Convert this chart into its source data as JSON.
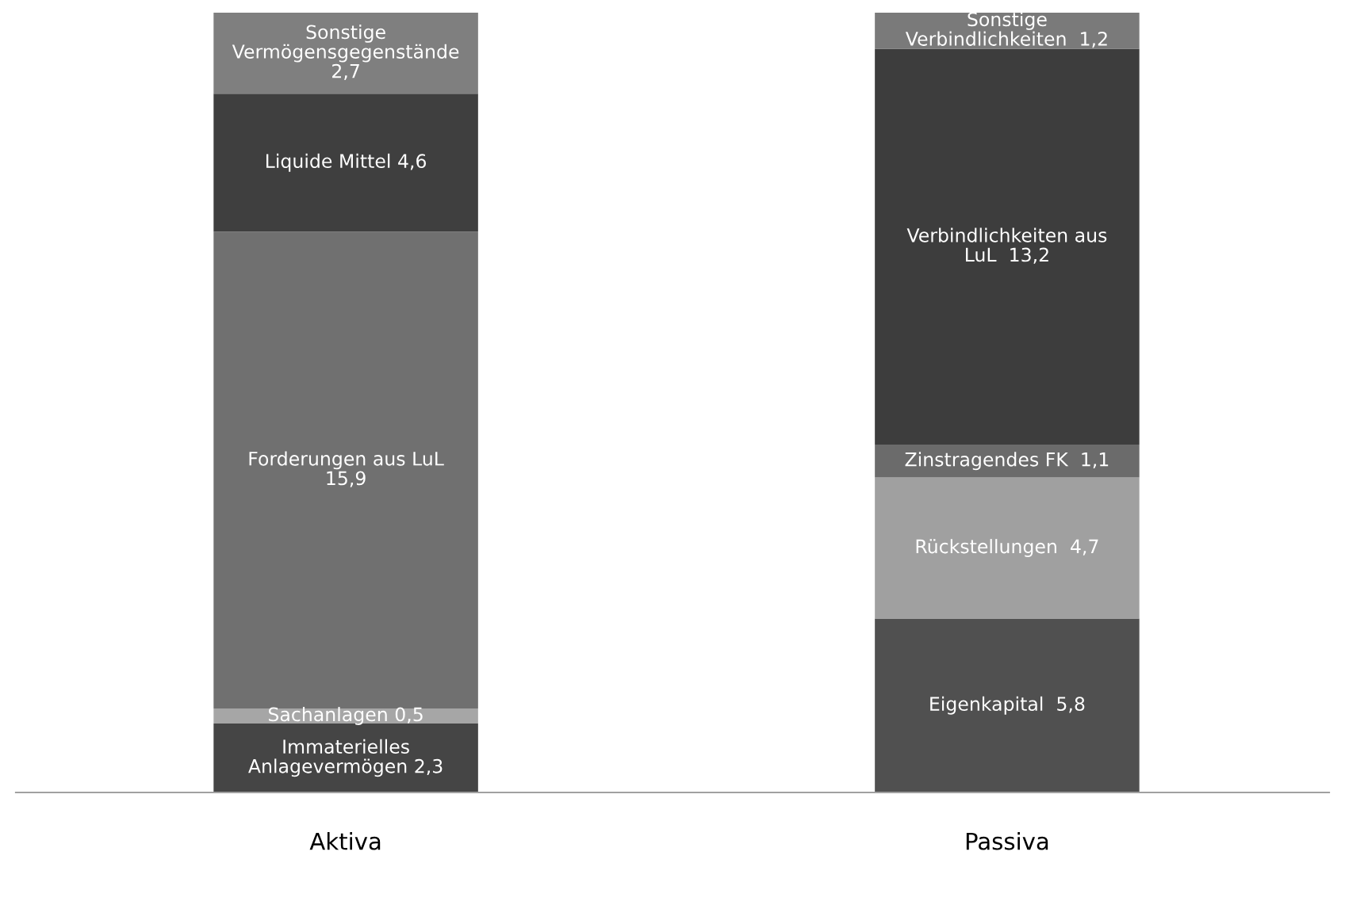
{
  "chart_data": {
    "type": "bar",
    "stacked": true,
    "categories": [
      "Aktiva",
      "Passiva"
    ],
    "ylim": [
      0,
      26
    ],
    "tick_labels": "x",
    "grid": false,
    "legend": false,
    "series": [
      {
        "color": "#454545",
        "values": [
          2.3,
          null
        ],
        "value_labels": [
          "Immaterielles\nAnlagevermögen 2,3",
          null
        ]
      },
      {
        "color": "#a6a6a6",
        "values": [
          0.5,
          null
        ],
        "value_labels": [
          "Sachanlagen 0,5",
          null
        ]
      },
      {
        "color": "#707070",
        "values": [
          15.9,
          null
        ],
        "value_labels": [
          "Forderungen aus LuL\n15,9",
          null
        ]
      },
      {
        "color": "#3f3f3f",
        "values": [
          4.6,
          null
        ],
        "value_labels": [
          "Liquide Mittel 4,6",
          null
        ]
      },
      {
        "color": "#7f7f7f",
        "values": [
          2.7,
          null
        ],
        "value_labels": [
          "Sonstige\nVermögensgegenstände\n2,7",
          null
        ]
      },
      {
        "color": "#505050",
        "values": [
          null,
          5.8
        ],
        "value_labels": [
          null,
          "Eigenkapital  5,8"
        ]
      },
      {
        "color": "#a0a0a0",
        "values": [
          null,
          4.7
        ],
        "value_labels": [
          null,
          "Rückstellungen  4,7"
        ]
      },
      {
        "color": "#6b6b6b",
        "values": [
          null,
          1.1
        ],
        "value_labels": [
          null,
          "Zinstragendes FK  1,1"
        ]
      },
      {
        "color": "#3d3d3d",
        "values": [
          null,
          13.2
        ],
        "value_labels": [
          null,
          "Verbindlichkeiten aus\nLuL  13,2"
        ]
      },
      {
        "color": "#7a7a7a",
        "values": [
          null,
          1.2
        ],
        "value_labels": [
          null,
          "Sonstige\nVerbindlichkeiten  1,2"
        ]
      }
    ]
  }
}
